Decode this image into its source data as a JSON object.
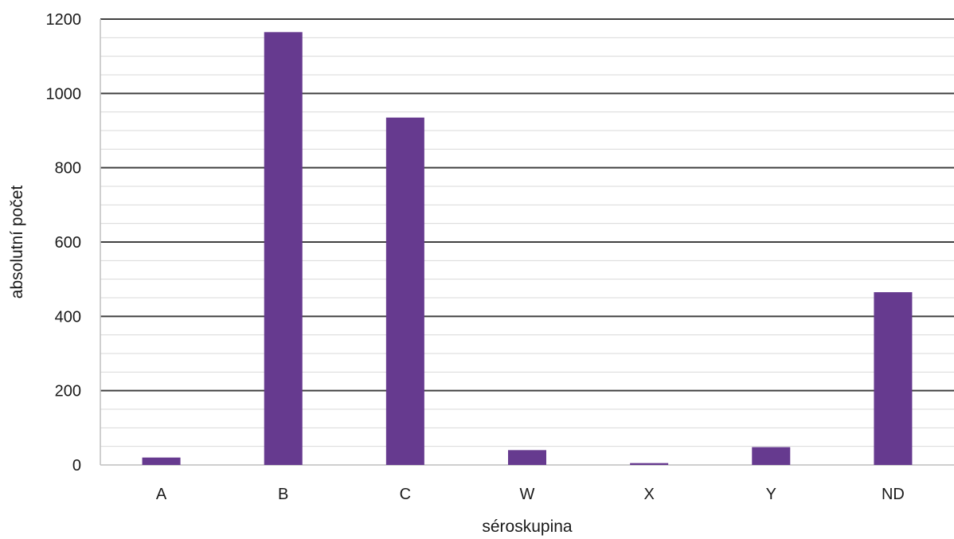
{
  "chart_data": {
    "type": "bar",
    "categories": [
      "A",
      "B",
      "C",
      "W",
      "X",
      "Y",
      "ND"
    ],
    "values": [
      20,
      1165,
      935,
      40,
      5,
      48,
      465
    ],
    "xlabel": "séroskupina",
    "ylabel": "absolutní počet",
    "ylim": [
      0,
      1200
    ],
    "y_major_step": 200,
    "y_minor_step": 50,
    "y_ticks": [
      "0",
      "200",
      "400",
      "600",
      "800",
      "1000",
      "1200"
    ],
    "grid": true,
    "legend": "none",
    "bar_color": "#663a8f"
  }
}
